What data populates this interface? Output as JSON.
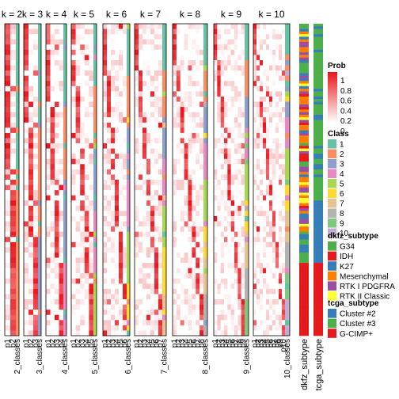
{
  "chart_data": {
    "type": "heatmap",
    "panels": [
      {
        "title": "k = 2",
        "classes": 2,
        "prob_cols": [
          "p1",
          "p2"
        ],
        "class_label": "2_classes"
      },
      {
        "title": "k = 3",
        "classes": 3,
        "prob_cols": [
          "p1",
          "p2",
          "p3"
        ],
        "class_label": "3_classes"
      },
      {
        "title": "k = 4",
        "classes": 4,
        "prob_cols": [
          "p1",
          "p2",
          "p3",
          "p4"
        ],
        "class_label": "4_classes"
      },
      {
        "title": "k = 5",
        "classes": 5,
        "prob_cols": [
          "p1",
          "p2",
          "p3",
          "p4",
          "p5"
        ],
        "class_label": "5_classes"
      },
      {
        "title": "k = 6",
        "classes": 6,
        "prob_cols": [
          "p1",
          "p2",
          "p3",
          "p4",
          "p5",
          "p6"
        ],
        "class_label": "6_classes"
      },
      {
        "title": "k = 7",
        "classes": 7,
        "prob_cols": [
          "p1",
          "p2",
          "p3",
          "p4",
          "p5",
          "p6",
          "p7"
        ],
        "class_label": "7_classes"
      },
      {
        "title": "k = 8",
        "classes": 8,
        "prob_cols": [
          "p1",
          "p2",
          "p3",
          "p4",
          "p5",
          "p6",
          "p7",
          "p8"
        ],
        "class_label": "8_classes"
      },
      {
        "title": "k = 9",
        "classes": 9,
        "prob_cols": [
          "p1",
          "p2",
          "p3",
          "p4",
          "p5",
          "p6",
          "p7",
          "p8",
          "p9"
        ],
        "class_label": "9_classes"
      },
      {
        "title": "k = 10",
        "classes": 10,
        "prob_cols": [
          "p1",
          "p2",
          "p3",
          "p4",
          "p5",
          "p6",
          "p7",
          "p8",
          "p9",
          "p10"
        ],
        "class_label": "10_classes"
      }
    ],
    "annotation_tracks": [
      "dkfz_subtype",
      "tcga_subtype"
    ],
    "legends": {
      "prob": {
        "title": "Prob",
        "ticks": [
          "1",
          "0.8",
          "0.6",
          "0.4",
          "0.2",
          "0"
        ]
      },
      "class": {
        "title": "Class",
        "items": [
          {
            "label": "1",
            "color": "#66C2A5"
          },
          {
            "label": "2",
            "color": "#FC8D62"
          },
          {
            "label": "3",
            "color": "#8DA0CB"
          },
          {
            "label": "4",
            "color": "#E78AC3"
          },
          {
            "label": "5",
            "color": "#A6D854"
          },
          {
            "label": "6",
            "color": "#FFD92F"
          },
          {
            "label": "7",
            "color": "#E5C494"
          },
          {
            "label": "8",
            "color": "#B3B3B3"
          },
          {
            "label": "9",
            "color": "#7FC97F"
          },
          {
            "label": "10",
            "color": "#BEAED4"
          }
        ]
      },
      "dkfz_subtype": {
        "title": "dkfz_subtype",
        "items": [
          {
            "label": "G34",
            "color": "#4DAF4A"
          },
          {
            "label": "IDH",
            "color": "#E41A1C"
          },
          {
            "label": "K27",
            "color": "#377EB8"
          },
          {
            "label": "Mesenchymal",
            "color": "#FF7F00"
          },
          {
            "label": "RTK I PDGFRA",
            "color": "#984EA3"
          },
          {
            "label": "RTK II Classic",
            "color": "#FFFF33"
          }
        ]
      },
      "tcga_subtype": {
        "title": "tcga_subtype",
        "items": [
          {
            "label": "Cluster #2",
            "color": "#377EB8"
          },
          {
            "label": "Cluster #3",
            "color": "#4DAF4A"
          },
          {
            "label": "G-CIMP+",
            "color": "#E41A1C"
          }
        ]
      }
    },
    "colors": {
      "high": "#E8141B",
      "low": "#FFFFFF"
    }
  }
}
